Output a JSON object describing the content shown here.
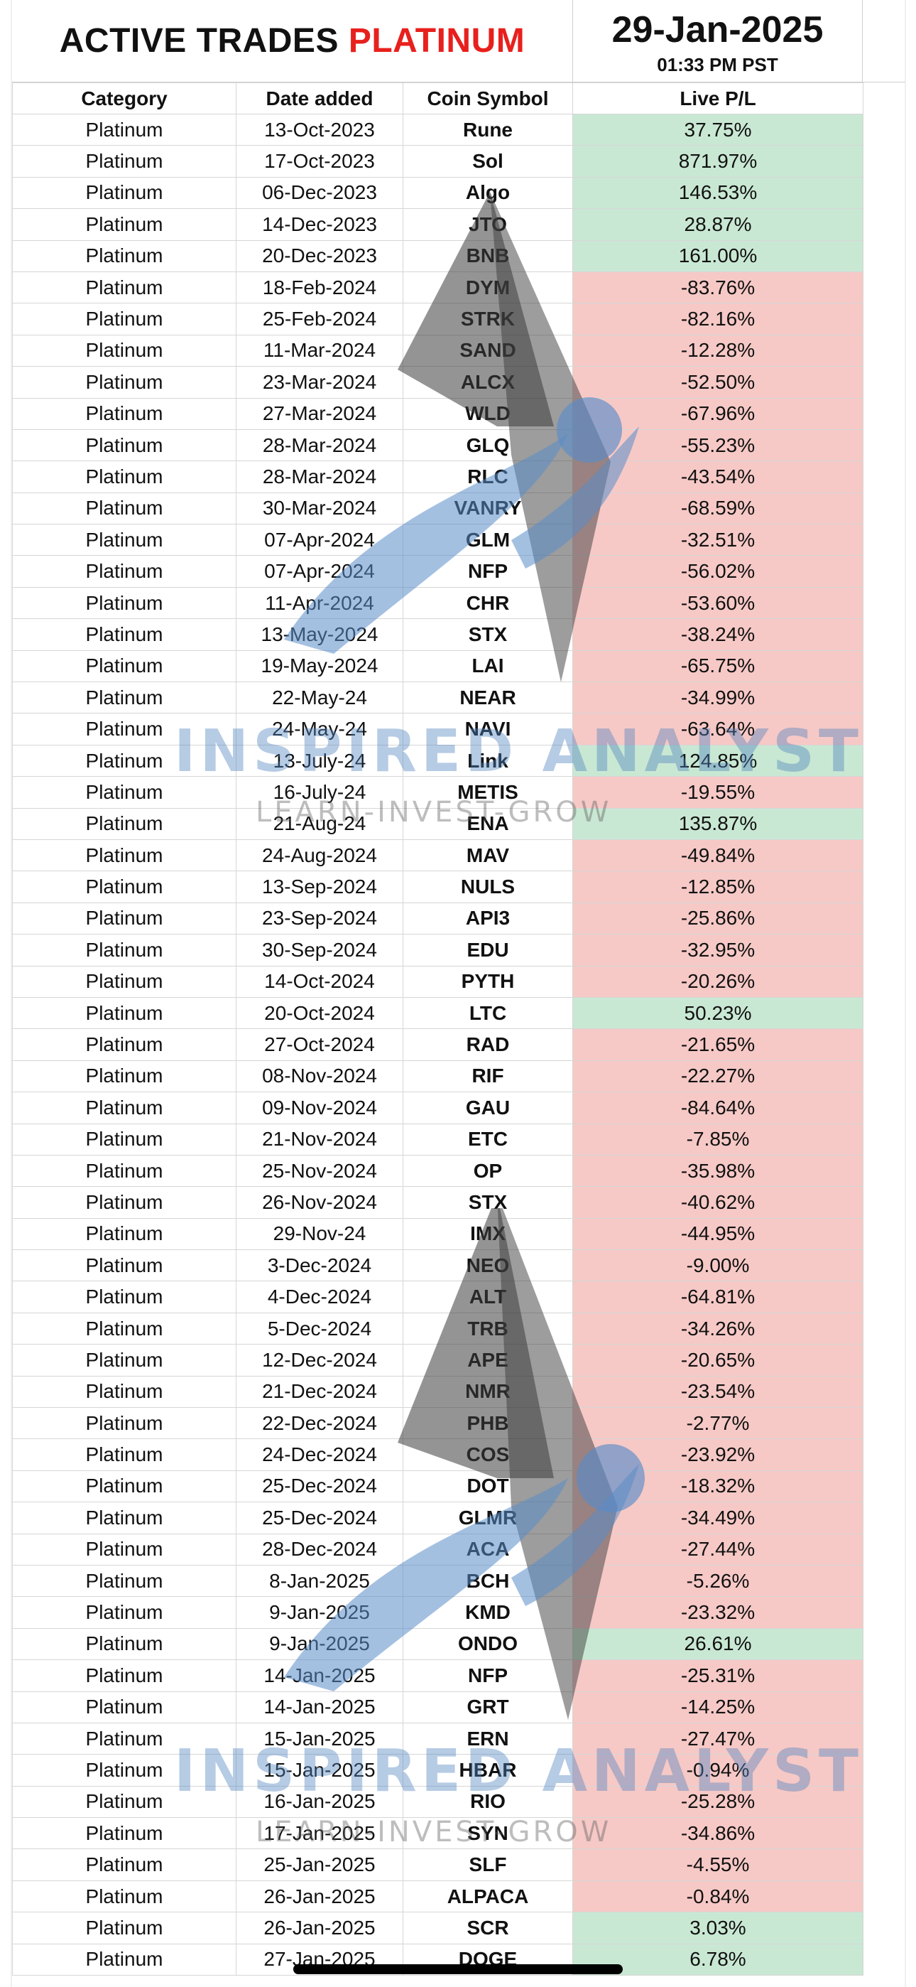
{
  "header": {
    "title_main": "ACTIVE TRADES",
    "title_accent": "PLATINUM",
    "date": "29-Jan-2025",
    "time": "01:33 PM PST"
  },
  "columns": [
    "Category",
    "Date added",
    "Coin Symbol",
    "Live P/L"
  ],
  "rows": [
    [
      "Platinum",
      "13-Oct-2023",
      "Rune",
      "37.75%"
    ],
    [
      "Platinum",
      "17-Oct-2023",
      "Sol",
      "871.97%"
    ],
    [
      "Platinum",
      "06-Dec-2023",
      "Algo",
      "146.53%"
    ],
    [
      "Platinum",
      "14-Dec-2023",
      "JTO",
      "28.87%"
    ],
    [
      "Platinum",
      "20-Dec-2023",
      "BNB",
      "161.00%"
    ],
    [
      "Platinum",
      "18-Feb-2024",
      "DYM",
      "-83.76%"
    ],
    [
      "Platinum",
      "25-Feb-2024",
      "STRK",
      "-82.16%"
    ],
    [
      "Platinum",
      "11-Mar-2024",
      "SAND",
      "-12.28%"
    ],
    [
      "Platinum",
      "23-Mar-2024",
      "ALCX",
      "-52.50%"
    ],
    [
      "Platinum",
      "27-Mar-2024",
      "WLD",
      "-67.96%"
    ],
    [
      "Platinum",
      "28-Mar-2024",
      "GLQ",
      "-55.23%"
    ],
    [
      "Platinum",
      "28-Mar-2024",
      "RLC",
      "-43.54%"
    ],
    [
      "Platinum",
      "30-Mar-2024",
      "VANRY",
      "-68.59%"
    ],
    [
      "Platinum",
      "07-Apr-2024",
      "GLM",
      "-32.51%"
    ],
    [
      "Platinum",
      "07-Apr-2024",
      "NFP",
      "-56.02%"
    ],
    [
      "Platinum",
      "11-Apr-2024",
      "CHR",
      "-53.60%"
    ],
    [
      "Platinum",
      "13-May-2024",
      "STX",
      "-38.24%"
    ],
    [
      "Platinum",
      "19-May-2024",
      "LAI",
      "-65.75%"
    ],
    [
      "Platinum",
      "22-May-24",
      "NEAR",
      "-34.99%"
    ],
    [
      "Platinum",
      "24-May-24",
      "NAVI",
      "-63.64%"
    ],
    [
      "Platinum",
      "13-July-24",
      "Link",
      "124.85%"
    ],
    [
      "Platinum",
      "16-July-24",
      "METIS",
      "-19.55%"
    ],
    [
      "Platinum",
      "21-Aug-24",
      "ENA",
      "135.87%"
    ],
    [
      "Platinum",
      "24-Aug-2024",
      "MAV",
      "-49.84%"
    ],
    [
      "Platinum",
      "13-Sep-2024",
      "NULS",
      "-12.85%"
    ],
    [
      "Platinum",
      "23-Sep-2024",
      "API3",
      "-25.86%"
    ],
    [
      "Platinum",
      "30-Sep-2024",
      "EDU",
      "-32.95%"
    ],
    [
      "Platinum",
      "14-Oct-2024",
      "PYTH",
      "-20.26%"
    ],
    [
      "Platinum",
      "20-Oct-2024",
      "LTC",
      "50.23%"
    ],
    [
      "Platinum",
      "27-Oct-2024",
      "RAD",
      "-21.65%"
    ],
    [
      "Platinum",
      "08-Nov-2024",
      "RIF",
      "-22.27%"
    ],
    [
      "Platinum",
      "09-Nov-2024",
      "GAU",
      "-84.64%"
    ],
    [
      "Platinum",
      "21-Nov-2024",
      "ETC",
      "-7.85%"
    ],
    [
      "Platinum",
      "25-Nov-2024",
      "OP",
      "-35.98%"
    ],
    [
      "Platinum",
      "26-Nov-2024",
      "STX",
      "-40.62%"
    ],
    [
      "Platinum",
      "29-Nov-24",
      "IMX",
      "-44.95%"
    ],
    [
      "Platinum",
      "3-Dec-2024",
      "NEO",
      "-9.00%"
    ],
    [
      "Platinum",
      "4-Dec-2024",
      "ALT",
      "-64.81%"
    ],
    [
      "Platinum",
      "5-Dec-2024",
      "TRB",
      "-34.26%"
    ],
    [
      "Platinum",
      "12-Dec-2024",
      "APE",
      "-20.65%"
    ],
    [
      "Platinum",
      "21-Dec-2024",
      "NMR",
      "-23.54%"
    ],
    [
      "Platinum",
      "22-Dec-2024",
      "PHB",
      "-2.77%"
    ],
    [
      "Platinum",
      "24-Dec-2024",
      "COS",
      "-23.92%"
    ],
    [
      "Platinum",
      "25-Dec-2024",
      "DOT",
      "-18.32%"
    ],
    [
      "Platinum",
      "25-Dec-2024",
      "GLMR",
      "-34.49%"
    ],
    [
      "Platinum",
      "28-Dec-2024",
      "ACA",
      "-27.44%"
    ],
    [
      "Platinum",
      "8-Jan-2025",
      "BCH",
      "-5.26%"
    ],
    [
      "Platinum",
      "9-Jan-2025",
      "KMD",
      "-23.32%"
    ],
    [
      "Platinum",
      "9-Jan-2025",
      "ONDO",
      "26.61%"
    ],
    [
      "Platinum",
      "14-Jan-2025",
      "NFP",
      "-25.31%"
    ],
    [
      "Platinum",
      "14-Jan-2025",
      "GRT",
      "-14.25%"
    ],
    [
      "Platinum",
      "15-Jan-2025",
      "ERN",
      "-27.47%"
    ],
    [
      "Platinum",
      "15-Jan-2025",
      "HBAR",
      "-0.94%"
    ],
    [
      "Platinum",
      "16-Jan-2025",
      "RIO",
      "-25.28%"
    ],
    [
      "Platinum",
      "17-Jan-2025",
      "SYN",
      "-34.86%"
    ],
    [
      "Platinum",
      "25-Jan-2025",
      "SLF",
      "-4.55%"
    ],
    [
      "Platinum",
      "26-Jan-2025",
      "ALPACA",
      "-0.84%"
    ],
    [
      "Platinum",
      "26-Jan-2025",
      "SCR",
      "3.03%"
    ],
    [
      "Platinum",
      "27-Jan-2025",
      "DOGE",
      "6.78%"
    ]
  ],
  "colors": {
    "accent": "#e8201d",
    "positive_fill": "#c9e8d3",
    "negative_fill": "#f6c9c6"
  },
  "watermark": {
    "brand": "INSPIRED ANALYST",
    "tagline": "LEARN-INVEST-GROW",
    "icon": "inspired-analyst-logo"
  }
}
